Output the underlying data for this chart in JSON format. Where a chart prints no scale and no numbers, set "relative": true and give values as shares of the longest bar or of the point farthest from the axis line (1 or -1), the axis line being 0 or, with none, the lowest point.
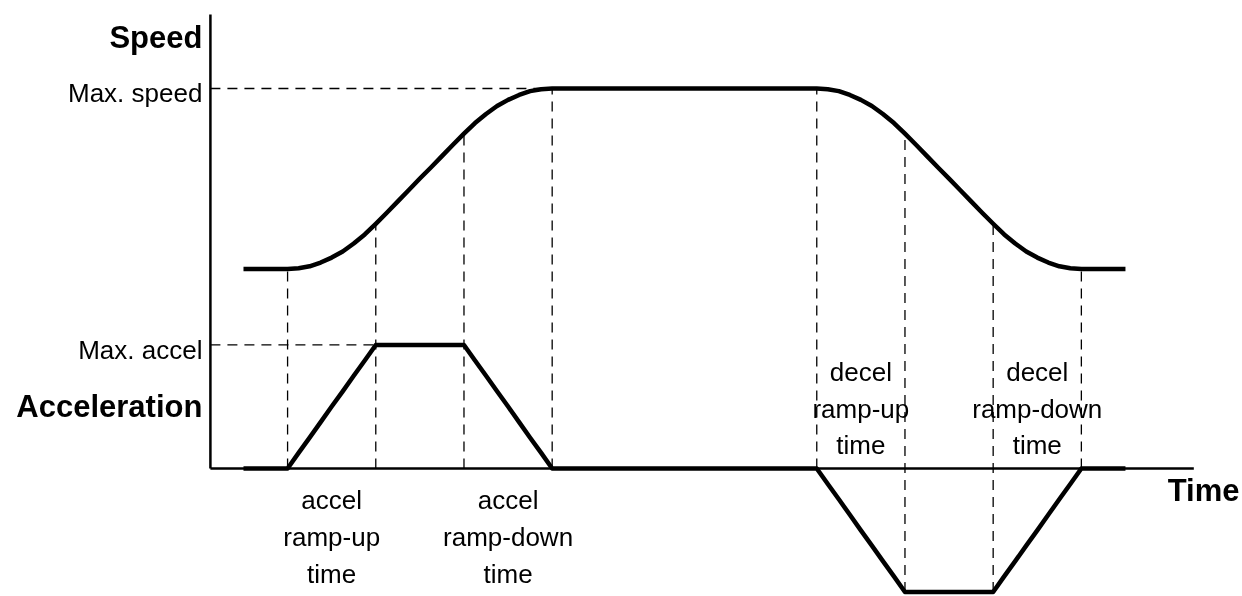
{
  "chart_data": {
    "type": "line",
    "relative": true,
    "xlabel": "Time",
    "ylabel": "Speed",
    "grid": "x",
    "categories": [
      null,
      null,
      null,
      null,
      null,
      null,
      null,
      null,
      null,
      null,
      null,
      null,
      null,
      null,
      null,
      null,
      null,
      null,
      null,
      null,
      null,
      null,
      null,
      null,
      null,
      null,
      null,
      null,
      null,
      null,
      null,
      null,
      null,
      null,
      null,
      null,
      null,
      null,
      null,
      null,
      null,
      null,
      null,
      null,
      null,
      null,
      null,
      null,
      null,
      null,
      null,
      null,
      null,
      null,
      null,
      null,
      null,
      null,
      null,
      null,
      null,
      null,
      null,
      null,
      null,
      null,
      null,
      null,
      null,
      null,
      null,
      null,
      null,
      null,
      null,
      null,
      null,
      null,
      null,
      null,
      null
    ],
    "series": [
      {
        "color": "#000000",
        "values": [
          0.525,
          0.525,
          0.525,
          0.525,
          0.525,
          0.527,
          0.532,
          0.542,
          0.555,
          0.571,
          0.592,
          0.616,
          0.644,
          0.673,
          0.703,
          0.733,
          0.763,
          0.792,
          0.822,
          0.852,
          0.881,
          0.909,
          0.933,
          0.954,
          0.97,
          0.983,
          0.993,
          0.998,
          1,
          1,
          1,
          1,
          1,
          1,
          1,
          1,
          1,
          1,
          1,
          1,
          1,
          1,
          1,
          1,
          1,
          1,
          1,
          1,
          1,
          1,
          1,
          1,
          1,
          0.998,
          0.993,
          0.983,
          0.97,
          0.954,
          0.933,
          0.909,
          0.881,
          0.852,
          0.822,
          0.792,
          0.763,
          0.733,
          0.703,
          0.673,
          0.644,
          0.616,
          0.592,
          0.571,
          0.555,
          0.542,
          0.532,
          0.527,
          0.525,
          0.525,
          0.525,
          0.525,
          0.525
        ]
      },
      {
        "color": "#000000",
        "values": [
          0,
          0,
          0,
          0,
          0,
          0.041,
          0.081,
          0.122,
          0.163,
          0.203,
          0.244,
          0.284,
          0.325,
          0.325,
          0.325,
          0.325,
          0.325,
          0.325,
          0.325,
          0.325,
          0.325,
          0.284,
          0.244,
          0.203,
          0.163,
          0.122,
          0.081,
          0.041,
          0,
          0,
          0,
          0,
          0,
          0,
          0,
          0,
          0,
          0,
          0,
          0,
          0,
          0,
          0,
          0,
          0,
          0,
          0,
          0,
          0,
          0,
          0,
          0,
          0,
          -0.041,
          -0.081,
          -0.122,
          -0.163,
          -0.203,
          -0.244,
          -0.284,
          -0.325,
          -0.325,
          -0.325,
          -0.325,
          -0.325,
          -0.325,
          -0.325,
          -0.325,
          -0.325,
          -0.284,
          -0.244,
          -0.203,
          -0.163,
          -0.122,
          -0.081,
          -0.041,
          0,
          0,
          0,
          0,
          0
        ]
      }
    ],
    "ref_lines": [
      {
        "axis": "y",
        "value": 1,
        "label": "Max. speed",
        "line_style": "dashed"
      },
      {
        "axis": "y",
        "value": 0.325,
        "label": "Max. accel",
        "line_style": "dashed"
      }
    ],
    "annotations": [
      "accel\nramp-up\ntime",
      "accel\nramp-down\ntime",
      "decel\nramp-up\ntime",
      "decel\nramp-down\ntime",
      "Acceleration"
    ]
  }
}
